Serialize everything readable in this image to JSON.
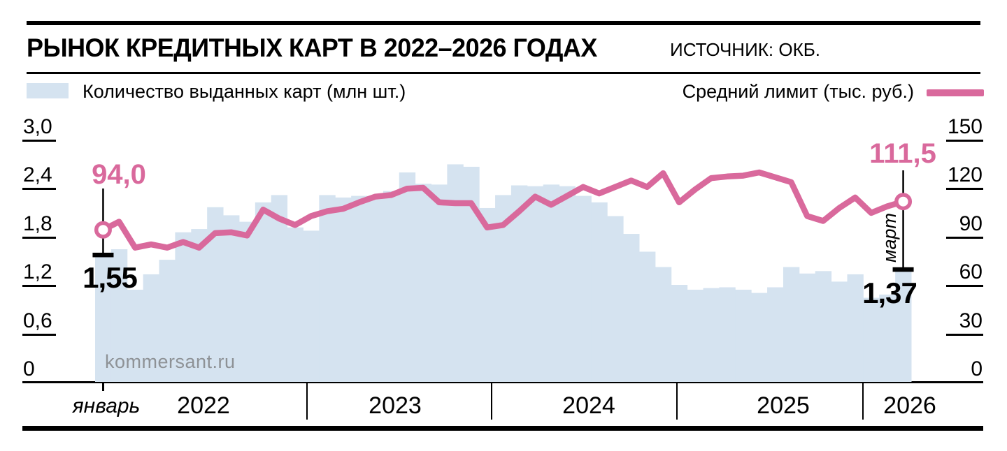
{
  "header": {
    "title": "РЫНОК КРЕДИТНЫХ КАРТ В 2022–2026 ГОДАХ",
    "source": "ИСТОЧНИК: ОКБ."
  },
  "legend": {
    "bars_label": "Количество выданных карт (млн шт.)",
    "line_label": "Средний лимит (тыс. руб.)"
  },
  "watermark": "kommersant.ru",
  "colors": {
    "bar_fill": "#d5e3f0",
    "line": "#d9699c",
    "black": "#000000",
    "watermark_gray": "#8e9296"
  },
  "annotations": {
    "line_start_value": "94,0",
    "bar_start_value": "1,55",
    "line_end_value": "111,5",
    "bar_end_value": "1,37",
    "end_month_label": "март"
  },
  "chart_data": {
    "type": "bar+line",
    "x_interval": "month",
    "months": [
      "2022-01",
      "2022-02",
      "2022-03",
      "2022-04",
      "2022-05",
      "2022-06",
      "2022-07",
      "2022-08",
      "2022-09",
      "2022-10",
      "2022-11",
      "2022-12",
      "2023-01",
      "2023-02",
      "2023-03",
      "2023-04",
      "2023-05",
      "2023-06",
      "2023-07",
      "2023-08",
      "2023-09",
      "2023-10",
      "2023-11",
      "2023-12",
      "2024-01",
      "2024-02",
      "2024-03",
      "2024-04",
      "2024-05",
      "2024-06",
      "2024-07",
      "2024-08",
      "2024-09",
      "2024-10",
      "2024-11",
      "2024-12",
      "2025-01",
      "2025-02",
      "2025-03",
      "2025-04",
      "2025-05",
      "2025-06",
      "2025-07",
      "2025-08",
      "2025-09",
      "2025-10",
      "2025-11",
      "2025-12",
      "2026-01",
      "2026-02",
      "2026-03"
    ],
    "bar_series": {
      "name": "Количество выданных карт (млн шт.)",
      "axis": "left",
      "values": [
        1.55,
        1.64,
        1.14,
        1.33,
        1.51,
        1.85,
        1.89,
        2.16,
        2.06,
        1.98,
        2.22,
        2.31,
        1.91,
        1.87,
        2.31,
        2.28,
        2.3,
        2.28,
        2.36,
        2.59,
        2.45,
        2.44,
        2.69,
        2.66,
        2.15,
        2.31,
        2.43,
        2.42,
        2.44,
        2.42,
        2.3,
        2.22,
        2.05,
        1.83,
        1.61,
        1.42,
        1.2,
        1.14,
        1.16,
        1.17,
        1.14,
        1.1,
        1.17,
        1.42,
        1.34,
        1.37,
        1.24,
        1.33,
        1.04,
        1.08,
        1.37
      ]
    },
    "line_series": {
      "name": "Средний лимит (тыс. руб.)",
      "axis": "right",
      "values": [
        94.0,
        99.0,
        83.0,
        85.0,
        83.0,
        86.5,
        83.0,
        92.0,
        92.5,
        90.5,
        106.5,
        101.0,
        97.0,
        102.5,
        105.5,
        107.0,
        111.0,
        114.5,
        115.5,
        119.5,
        120.0,
        111.0,
        110.5,
        110.5,
        95.5,
        97.0,
        105.5,
        114.5,
        109.5,
        115.0,
        120.5,
        116.5,
        120.5,
        124.5,
        120.5,
        129.0,
        111.0,
        119.0,
        126.0,
        127.0,
        127.5,
        129.5,
        126.5,
        123.5,
        102.5,
        99.5,
        107.5,
        114.0,
        104.5,
        108.5,
        111.5
      ]
    },
    "left_axis": {
      "range": [
        0,
        3.0
      ],
      "ticks": [
        {
          "label": "3,0",
          "value": 3.0
        },
        {
          "label": "2,4",
          "value": 2.4
        },
        {
          "label": "1,8",
          "value": 1.8
        },
        {
          "label": "1,2",
          "value": 1.2
        },
        {
          "label": "0,6",
          "value": 0.6
        },
        {
          "label": "0",
          "value": 0
        }
      ]
    },
    "right_axis": {
      "range": [
        0,
        150
      ],
      "ticks": [
        {
          "label": "150",
          "value": 150
        },
        {
          "label": "120",
          "value": 120
        },
        {
          "label": "90",
          "value": 90
        },
        {
          "label": "60",
          "value": 60
        },
        {
          "label": "30",
          "value": 30
        },
        {
          "label": "0",
          "value": 0
        }
      ]
    },
    "x_axis": {
      "first_month_label": "январь",
      "years": [
        "2022",
        "2023",
        "2024",
        "2025",
        "2026"
      ]
    }
  }
}
